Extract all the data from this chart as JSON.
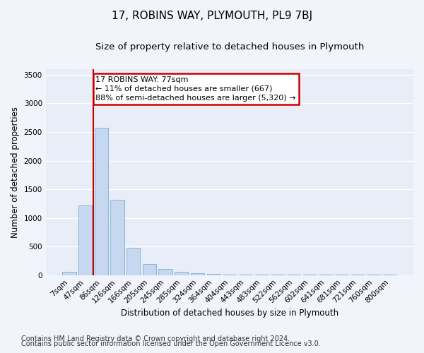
{
  "title": "17, ROBINS WAY, PLYMOUTH, PL9 7BJ",
  "subtitle": "Size of property relative to detached houses in Plymouth",
  "xlabel": "Distribution of detached houses by size in Plymouth",
  "ylabel": "Number of detached properties",
  "bar_labels": [
    "7sqm",
    "47sqm",
    "86sqm",
    "126sqm",
    "166sqm",
    "205sqm",
    "245sqm",
    "285sqm",
    "324sqm",
    "364sqm",
    "404sqm",
    "443sqm",
    "483sqm",
    "522sqm",
    "562sqm",
    "602sqm",
    "641sqm",
    "681sqm",
    "721sqm",
    "760sqm",
    "800sqm"
  ],
  "bar_values": [
    60,
    1220,
    2570,
    1310,
    480,
    200,
    110,
    60,
    30,
    20,
    10,
    5,
    5,
    5,
    5,
    5,
    5,
    5,
    5,
    5,
    5
  ],
  "bar_color": "#c5d8f0",
  "bar_edge_color": "#7aafd4",
  "annotation_text": "17 ROBINS WAY: 77sqm\n← 11% of detached houses are smaller (667)\n88% of semi-detached houses are larger (5,320) →",
  "annotation_box_color": "#ffffff",
  "annotation_box_edge_color": "#cc0000",
  "vline_color": "#cc0000",
  "ylim": [
    0,
    3600
  ],
  "yticks": [
    0,
    500,
    1000,
    1500,
    2000,
    2500,
    3000,
    3500
  ],
  "footer_line1": "Contains HM Land Registry data © Crown copyright and database right 2024.",
  "footer_line2": "Contains public sector information licensed under the Open Government Licence v3.0.",
  "bg_color": "#f2f4fb",
  "plot_bg_color": "#e8edf8",
  "grid_color": "#ffffff",
  "title_fontsize": 11,
  "subtitle_fontsize": 9.5,
  "label_fontsize": 8.5,
  "tick_fontsize": 7.5,
  "annotation_fontsize": 8,
  "footer_fontsize": 7
}
